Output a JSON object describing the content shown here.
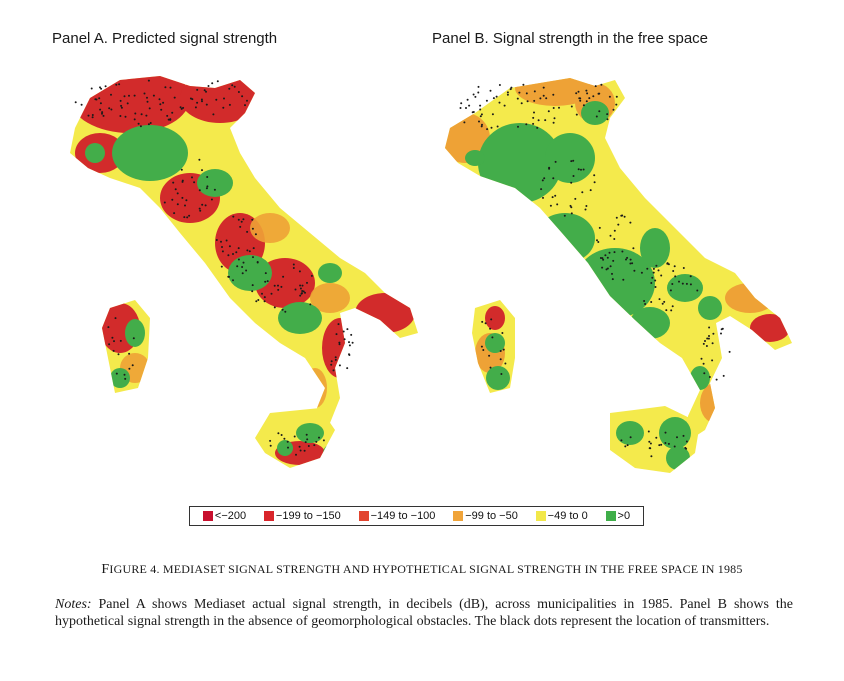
{
  "panels": {
    "a": {
      "title": "Panel A. Predicted signal strength"
    },
    "b": {
      "title": "Panel B. Signal strength in the free space"
    }
  },
  "legend": {
    "items": [
      {
        "label": "<−200",
        "color": "#c8102e"
      },
      {
        "label": "−199 to −150",
        "color": "#d9252b"
      },
      {
        "label": "−149 to −100",
        "color": "#e2452f"
      },
      {
        "label": "−99 to −50",
        "color": "#f0a43a"
      },
      {
        "label": "−49 to 0",
        "color": "#f2e84a"
      },
      {
        "label": ">0",
        "color": "#3fae49"
      }
    ]
  },
  "caption": {
    "prefix": "F",
    "text": "IGURE 4. MEDIASET SIGNAL STRENGTH AND HYPOTHETICAL SIGNAL STRENGTH IN THE FREE SPACE IN 1985",
    "full": "FIGURE 4. MEDIASET SIGNAL STRENGTH AND HYPOTHETICAL SIGNAL STRENGTH IN THE FREE SPACE IN 1985"
  },
  "notes": {
    "label": "Notes:",
    "text": " Panel A shows Mediaset actual signal strength, in decibels (dB), across municipalities in 1985. Panel B shows the hypothetical signal strength in the absence of geomorphological obstacles. The black dots represent the location of transmitters."
  },
  "colors": {
    "red": "#d22b2b",
    "orange": "#eea236",
    "yellow": "#f4ea4c",
    "green": "#43ad4a",
    "dot": "#1a1a1a"
  }
}
